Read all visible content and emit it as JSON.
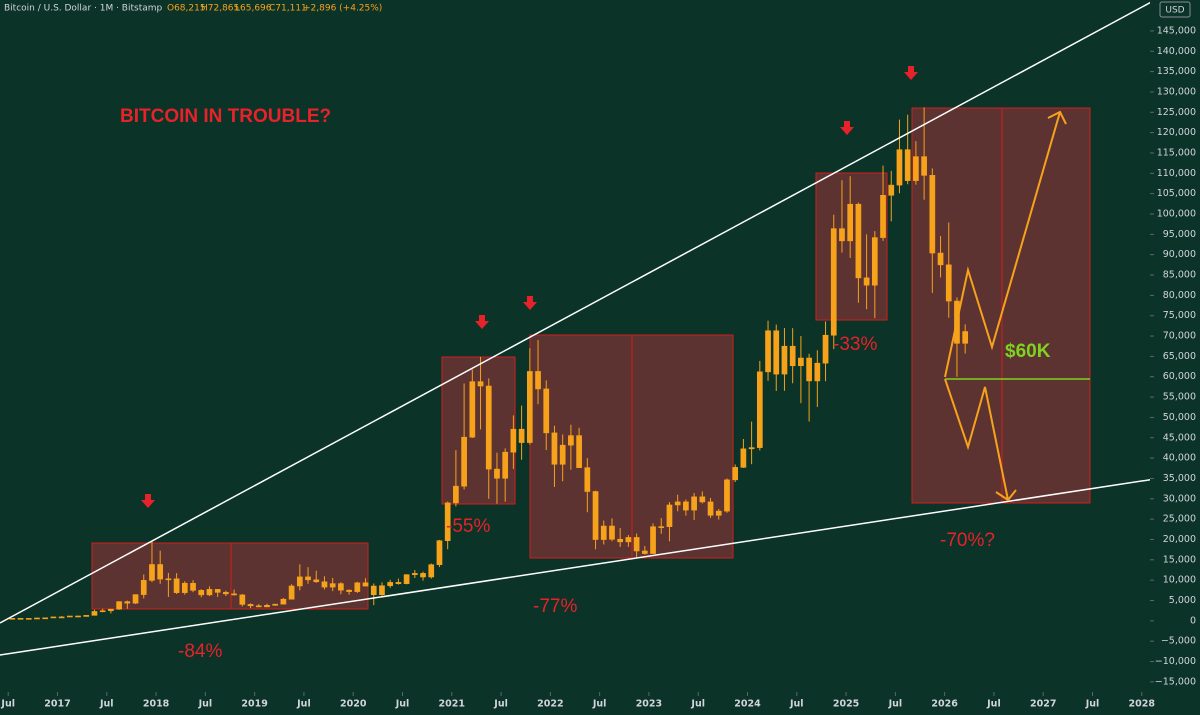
{
  "header": {
    "symbol": "Bitcoin / U.S. Dollar · 1M · Bitstamp",
    "open": "O68,215",
    "high": "H72,865",
    "low": "L65,696",
    "close": "C71,111",
    "change": "+2,896 (+4.25%)",
    "currency": "USD"
  },
  "chart_data": {
    "type": "candlestick",
    "color": "#f7a21b",
    "title": "BITCOIN IN TROUBLE?",
    "annotations": [
      "-84%",
      "-55%",
      "-77%",
      "-33%",
      "-70%?",
      "$60K"
    ],
    "x": [
      "2016-07",
      "2016-08",
      "2016-09",
      "2016-10",
      "2016-11",
      "2016-12",
      "2017-01",
      "2017-02",
      "2017-03",
      "2017-04",
      "2017-05",
      "2017-06",
      "2017-07",
      "2017-08",
      "2017-09",
      "2017-10",
      "2017-11",
      "2017-12",
      "2018-01",
      "2018-02",
      "2018-03",
      "2018-04",
      "2018-05",
      "2018-06",
      "2018-07",
      "2018-08",
      "2018-09",
      "2018-10",
      "2018-11",
      "2018-12",
      "2019-01",
      "2019-02",
      "2019-03",
      "2019-04",
      "2019-05",
      "2019-06",
      "2019-07",
      "2019-08",
      "2019-09",
      "2019-10",
      "2019-11",
      "2019-12",
      "2020-01",
      "2020-02",
      "2020-03",
      "2020-04",
      "2020-05",
      "2020-06",
      "2020-07",
      "2020-08",
      "2020-09",
      "2020-10",
      "2020-11",
      "2020-12",
      "2021-01",
      "2021-02",
      "2021-03",
      "2021-04",
      "2021-05",
      "2021-06",
      "2021-07",
      "2021-08",
      "2021-09",
      "2021-10",
      "2021-11",
      "2021-12",
      "2022-01",
      "2022-02",
      "2022-03",
      "2022-04",
      "2022-05",
      "2022-06",
      "2022-07",
      "2022-08",
      "2022-09",
      "2022-10",
      "2022-11",
      "2022-12",
      "2023-01",
      "2023-02",
      "2023-03",
      "2023-04",
      "2023-05",
      "2023-06",
      "2023-07",
      "2023-08",
      "2023-09",
      "2023-10",
      "2023-11",
      "2023-12",
      "2024-01",
      "2024-02",
      "2024-03",
      "2024-04",
      "2024-05",
      "2024-06",
      "2024-07",
      "2024-08",
      "2024-09",
      "2024-10",
      "2024-11",
      "2024-12",
      "2025-01",
      "2025-02",
      "2025-03",
      "2025-04",
      "2025-05",
      "2025-06",
      "2025-07",
      "2025-08",
      "2025-09",
      "2025-10",
      "2025-11",
      "2025-12",
      "2026-01",
      "2026-02",
      "2026-03"
    ],
    "open": [
      624,
      624,
      575,
      608,
      700,
      742,
      963,
      965,
      1190,
      1080,
      1350,
      2300,
      2480,
      2870,
      4730,
      4340,
      6450,
      9950,
      13850,
      10270,
      10330,
      6930,
      9240,
      7500,
      6390,
      7730,
      7010,
      6630,
      6370,
      4040,
      3700,
      3440,
      3820,
      4100,
      5320,
      8570,
      10800,
      10080,
      9600,
      8300,
      9150,
      7540,
      7190,
      9350,
      8550,
      6420,
      8630,
      9450,
      9140,
      11350,
      11660,
      10780,
      13800,
      19700,
      28990,
      33100,
      45140,
      58790,
      57720,
      37300,
      35040,
      41460,
      47100,
      43820,
      61300,
      57000,
      46200,
      38480,
      43180,
      45530,
      37650,
      31790,
      19980,
      23300,
      20050,
      19420,
      20500,
      17170,
      16540,
      23130,
      23150,
      28480,
      29240,
      27220,
      30480,
      29230,
      25940,
      26970,
      34660,
      37720,
      42280,
      42580,
      61200,
      71300,
      60650,
      67500,
      62700,
      64600,
      58970,
      63330,
      70200,
      96400,
      93400,
      102400,
      84300,
      82500,
      94200,
      104600,
      107100,
      115800,
      108200,
      114100,
      109500,
      90400,
      87500,
      78600,
      68215
    ],
    "high": [
      704,
      626,
      610,
      740,
      753,
      975,
      1150,
      1200,
      1290,
      1350,
      2760,
      2980,
      2920,
      4800,
      4980,
      6470,
      11400,
      19666,
      17250,
      11790,
      11710,
      9760,
      9990,
      7770,
      8480,
      7760,
      7400,
      7680,
      6600,
      4300,
      4110,
      4200,
      4140,
      5600,
      9000,
      13880,
      13200,
      12320,
      10950,
      10540,
      9500,
      7750,
      9580,
      10500,
      9180,
      9460,
      10080,
      10380,
      11450,
      12470,
      12080,
      14100,
      19900,
      29300,
      41950,
      58350,
      61780,
      64900,
      59590,
      41330,
      42400,
      50500,
      52900,
      67000,
      69000,
      59100,
      47950,
      45800,
      48200,
      47450,
      40000,
      31990,
      24650,
      25200,
      22800,
      21100,
      21450,
      18390,
      23950,
      25250,
      29190,
      31000,
      29820,
      31430,
      31800,
      30200,
      27480,
      35000,
      38450,
      44700,
      48970,
      63900,
      73780,
      72800,
      71960,
      71950,
      70000,
      65650,
      66500,
      73600,
      99800,
      108300,
      109300,
      102800,
      95000,
      95800,
      111900,
      110600,
      123200,
      124400,
      117900,
      126200,
      111200,
      94600,
      97900,
      79500,
      72865
    ],
    "low": [
      605,
      540,
      570,
      605,
      680,
      740,
      750,
      910,
      890,
      1060,
      1350,
      2100,
      1840,
      2700,
      2980,
      4150,
      5500,
      9500,
      9100,
      5870,
      6600,
      6430,
      7040,
      5780,
      6070,
      5880,
      6100,
      6200,
      3550,
      3120,
      3350,
      3390,
      3680,
      4080,
      5320,
      7500,
      9100,
      9350,
      7710,
      7300,
      6530,
      6430,
      6860,
      8460,
      3850,
      6150,
      8100,
      8900,
      8970,
      10550,
      9880,
      10380,
      13220,
      17600,
      28130,
      32300,
      44950,
      47050,
      30000,
      28800,
      29280,
      37330,
      39600,
      43300,
      53250,
      42000,
      32900,
      34300,
      37150,
      37700,
      26700,
      17600,
      18780,
      19550,
      18150,
      18190,
      15480,
      16260,
      16500,
      21400,
      19550,
      26940,
      25860,
      24800,
      28860,
      25300,
      24900,
      26560,
      34100,
      37600,
      38500,
      41880,
      59000,
      56500,
      56550,
      58400,
      53500,
      49000,
      52550,
      58900,
      66800,
      90500,
      89200,
      78200,
      76600,
      74400,
      93400,
      98200,
      105100,
      107300,
      107200,
      103500,
      80600,
      84400,
      74500,
      60000,
      65696
    ],
    "close": [
      624,
      575,
      608,
      700,
      742,
      963,
      965,
      1190,
      1080,
      1350,
      2300,
      2480,
      2870,
      4730,
      4340,
      6450,
      9950,
      13850,
      10270,
      10330,
      6930,
      9240,
      7500,
      6390,
      7730,
      7010,
      6630,
      6370,
      4040,
      3700,
      3440,
      3820,
      4100,
      5320,
      8570,
      10800,
      10080,
      9600,
      8300,
      9150,
      7540,
      7190,
      9350,
      8550,
      6420,
      8630,
      9450,
      9140,
      11350,
      11660,
      10780,
      13800,
      19700,
      28990,
      33100,
      45140,
      58790,
      57720,
      37300,
      35040,
      41460,
      47100,
      43820,
      61300,
      57000,
      46200,
      38480,
      43180,
      45530,
      37650,
      31790,
      19980,
      23300,
      20050,
      19420,
      20500,
      17170,
      16540,
      23130,
      23150,
      28480,
      29240,
      27220,
      30480,
      29230,
      25940,
      26970,
      34660,
      37720,
      42280,
      42580,
      61200,
      71300,
      60650,
      67500,
      62700,
      64600,
      58970,
      63330,
      70200,
      96400,
      93400,
      102400,
      84300,
      82500,
      94200,
      104600,
      107100,
      115800,
      108200,
      114100,
      109500,
      90400,
      87500,
      78600,
      68215,
      71111
    ],
    "xlim": [
      "2016-06",
      "2028-02"
    ],
    "xticks": [
      {
        "value": "2016-07",
        "label": "Jul"
      },
      {
        "value": "2017-01",
        "label": "2017"
      },
      {
        "value": "2017-07",
        "label": "Jul"
      },
      {
        "value": "2018-01",
        "label": "2018"
      },
      {
        "value": "2018-07",
        "label": "Jul"
      },
      {
        "value": "2019-01",
        "label": "2019"
      },
      {
        "value": "2019-07",
        "label": "Jul"
      },
      {
        "value": "2020-01",
        "label": "2020"
      },
      {
        "value": "2020-07",
        "label": "Jul"
      },
      {
        "value": "2021-01",
        "label": "2021"
      },
      {
        "value": "2021-07",
        "label": "Jul"
      },
      {
        "value": "2022-01",
        "label": "2022"
      },
      {
        "value": "2022-07",
        "label": "Jul"
      },
      {
        "value": "2023-01",
        "label": "2023"
      },
      {
        "value": "2023-07",
        "label": "Jul"
      },
      {
        "value": "2024-01",
        "label": "2024"
      },
      {
        "value": "2024-07",
        "label": "Jul"
      },
      {
        "value": "2025-01",
        "label": "2025"
      },
      {
        "value": "2025-07",
        "label": "Jul"
      },
      {
        "value": "2026-01",
        "label": "2026"
      },
      {
        "value": "2026-07",
        "label": "Jul"
      },
      {
        "value": "2027-01",
        "label": "2027"
      },
      {
        "value": "2027-07",
        "label": "Jul"
      },
      {
        "value": "2028-01",
        "label": "2028"
      }
    ],
    "ylim": [
      -17000,
      152600
    ],
    "yticks": [
      {
        "value": -15000,
        "label": "−15,000"
      },
      {
        "value": -10000,
        "label": "−10,000"
      },
      {
        "value": -5000,
        "label": "−5,000"
      },
      0,
      {
        "value": 5000,
        "label": "5,000"
      },
      {
        "value": 10000,
        "label": "10,000"
      },
      {
        "value": 15000,
        "label": "15,000"
      },
      {
        "value": 20000,
        "label": "20,000"
      },
      {
        "value": 25000,
        "label": "25,000"
      },
      {
        "value": 30000,
        "label": "30,000"
      },
      {
        "value": 35000,
        "label": "35,000"
      },
      {
        "value": 40000,
        "label": "40,000"
      },
      {
        "value": 45000,
        "label": "45,000"
      },
      {
        "value": 50000,
        "label": "50,000"
      },
      {
        "value": 55000,
        "label": "55,000"
      },
      {
        "value": 60000,
        "label": "60,000"
      },
      {
        "value": 65000,
        "label": "65,000"
      },
      {
        "value": 70000,
        "label": "70,000"
      },
      {
        "value": 75000,
        "label": "75,000"
      },
      {
        "value": 80000,
        "label": "80,000"
      },
      {
        "value": 85000,
        "label": "85,000"
      },
      {
        "value": 90000,
        "label": "90,000"
      },
      {
        "value": 95000,
        "label": "95,000"
      },
      {
        "value": 100000,
        "label": "100,000"
      },
      {
        "value": 105000,
        "label": "105,000"
      },
      {
        "value": 110000,
        "label": "110,000"
      },
      {
        "value": 115000,
        "label": "115,000"
      },
      {
        "value": 120000,
        "label": "120,000"
      },
      {
        "value": 125000,
        "label": "125,000"
      },
      {
        "value": 130000,
        "label": "130,000"
      },
      {
        "value": 135000,
        "label": "135,000"
      },
      {
        "value": 140000,
        "label": "140,000"
      },
      {
        "value": 145000,
        "label": "145,000"
      }
    ]
  }
}
